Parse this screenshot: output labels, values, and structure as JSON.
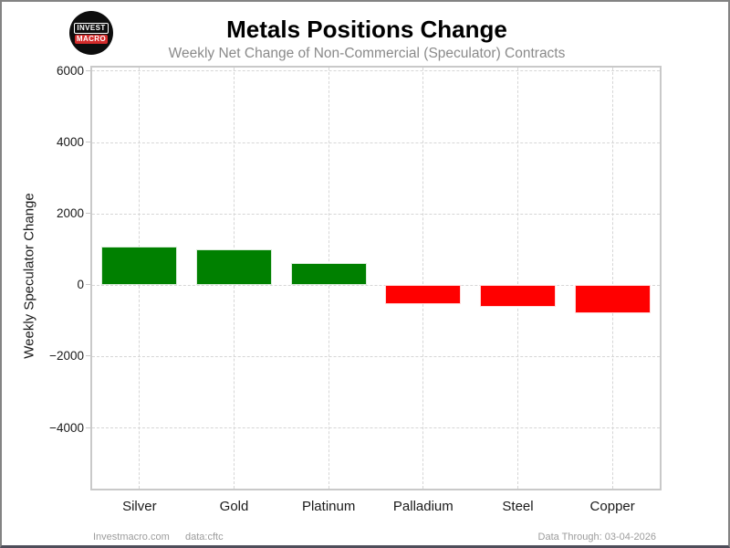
{
  "header": {
    "title": "Metals Positions Change",
    "subtitle": "Weekly Net Change of Non-Commercial (Speculator) Contracts"
  },
  "logo": {
    "line1": "INVEST",
    "line2": "MACRO",
    "bg_color": "#0d0d0d",
    "accent_color": "#d32b2b"
  },
  "chart_data": {
    "type": "bar",
    "title": "Metals Positions Change",
    "subtitle": "Weekly Net Change of Non-Commercial (Speculator) Contracts",
    "categories": [
      "Silver",
      "Gold",
      "Platinum",
      "Palladium",
      "Steel",
      "Copper"
    ],
    "values": [
      1090,
      1010,
      620,
      -540,
      -600,
      -790
    ],
    "xlabel": "",
    "ylabel": "Weekly Speculator Change",
    "ylim": [
      -5700,
      6100
    ],
    "yticks": [
      6000,
      4000,
      2000,
      0,
      -2000,
      -4000
    ],
    "ytick_labels": [
      "6000",
      "4000",
      "2000",
      "0",
      "−2000",
      "−4000"
    ],
    "grid": true,
    "legend": "none",
    "positive_color": "#008000",
    "negative_color": "#ff0000",
    "bar_width_fraction": 0.8
  },
  "footer": {
    "left1": "Investmacro.com",
    "left2": "data:cftc",
    "right": "Data Through: 03-04-2026"
  }
}
